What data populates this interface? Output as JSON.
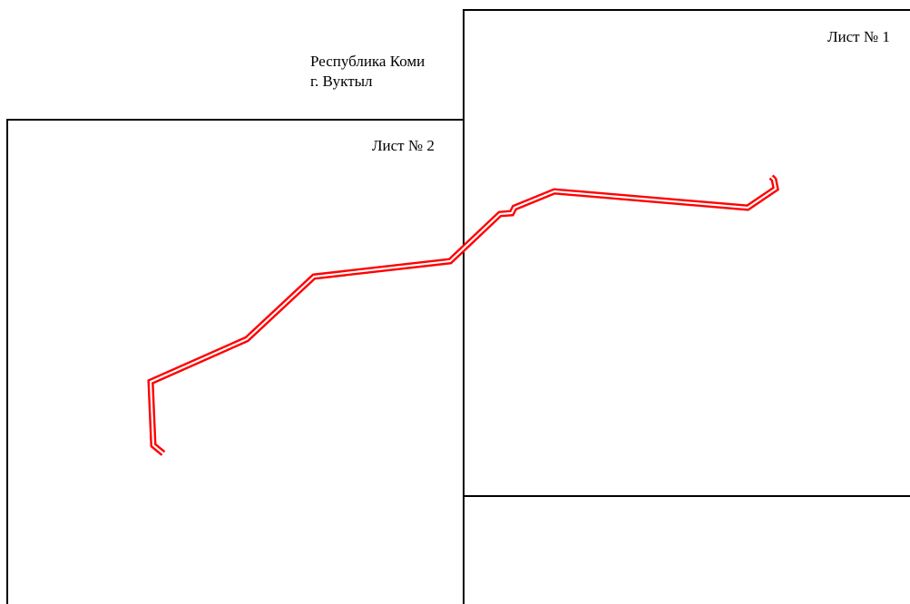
{
  "region": {
    "name": "Республика Коми",
    "city": "г. Вуктыл"
  },
  "sheets": [
    {
      "label": "Лист № 1"
    },
    {
      "label": "Лист № 2"
    }
  ],
  "colors": {
    "frame": "#000000",
    "route": "#ff0000",
    "background": "#ffffff"
  }
}
